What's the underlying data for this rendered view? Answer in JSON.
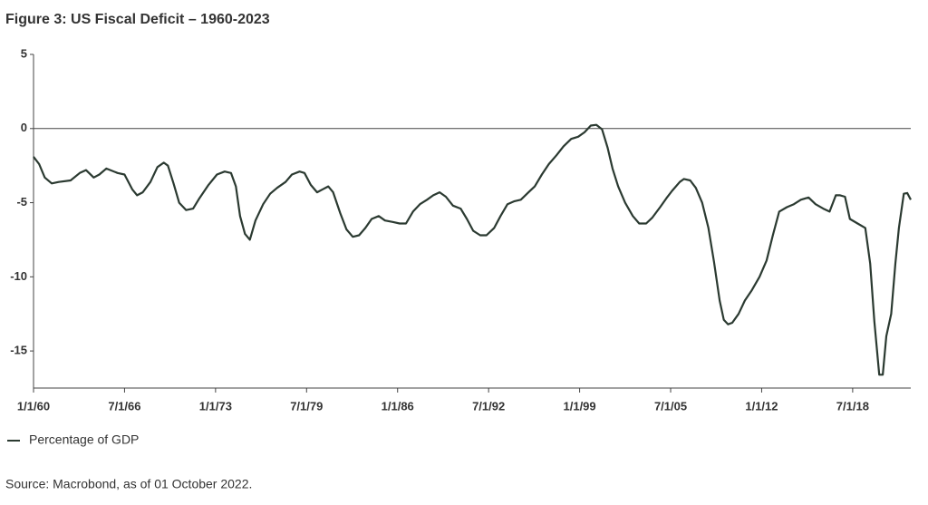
{
  "chart_data": {
    "type": "line",
    "title": "Figure 3: US Fiscal Deficit – 1960-2023",
    "source": "Source: Macrobond, as of 01 October 2022.",
    "x": [
      1960,
      1960.4,
      1960.8,
      1961.3,
      1961.8,
      1962.65,
      1963.3,
      1963.75,
      1964.3,
      1964.7,
      1965.2,
      1966,
      1966.5,
      1967.05,
      1967.4,
      1967.8,
      1968.35,
      1968.85,
      1969.3,
      1969.6,
      1970,
      1970.4,
      1970.9,
      1971.4,
      1971.85,
      1972.5,
      1973.1,
      1973.65,
      1974.1,
      1974.45,
      1974.75,
      1975.1,
      1975.45,
      1975.85,
      1976.4,
      1976.9,
      1977.4,
      1978,
      1978.45,
      1979,
      1979.35,
      1979.8,
      1980.25,
      1980.65,
      1981.05,
      1981.4,
      1981.9,
      1982.35,
      1982.8,
      1983.25,
      1983.7,
      1984.15,
      1984.65,
      1985.1,
      1985.65,
      1986.15,
      1986.6,
      1987.1,
      1987.6,
      1988.1,
      1988.55,
      1989,
      1989.45,
      1989.95,
      1990.5,
      1990.95,
      1991.4,
      1991.9,
      1992.35,
      1992.9,
      1993.35,
      1993.85,
      1994.35,
      1994.8,
      1995.35,
      1995.8,
      1996.3,
      1996.8,
      1997.35,
      1997.85,
      1998.4,
      1998.9,
      1999.35,
      1999.8,
      2000.2,
      2000.6,
      2001,
      2001.35,
      2001.75,
      2002.25,
      2002.8,
      2003.25,
      2003.75,
      2004.2,
      2004.75,
      2005.2,
      2005.6,
      2006.15,
      2006.45,
      2006.9,
      2007.3,
      2007.75,
      2008.2,
      2008.6,
      2009,
      2009.3,
      2009.6,
      2009.9,
      2010.35,
      2010.8,
      2011.3,
      2011.85,
      2012.35,
      2012.8,
      2013.25,
      2013.8,
      2014.3,
      2014.8,
      2015.35,
      2015.85,
      2016.4,
      2016.85,
      2017.3,
      2017.6,
      2017.95,
      2018.3,
      2018.85,
      2019.4,
      2019.75,
      2020.05,
      2020.4,
      2020.65,
      2020.9,
      2021.25,
      2021.55,
      2021.8,
      2022.15,
      2022.4,
      2022.65
    ],
    "series": [
      {
        "name": "Percentage of GDP",
        "color": "#2b3a31",
        "values": [
          -1.9,
          -2.4,
          -3.3,
          -3.7,
          -3.6,
          -3.5,
          -3.0,
          -2.8,
          -3.3,
          -3.1,
          -2.7,
          -3.0,
          -3.1,
          -4.1,
          -4.5,
          -4.3,
          -3.6,
          -2.6,
          -2.3,
          -2.5,
          -3.7,
          -5.0,
          -5.5,
          -5.4,
          -4.7,
          -3.8,
          -3.1,
          -2.9,
          -3.0,
          -3.9,
          -5.9,
          -7.1,
          -7.5,
          -6.2,
          -5.1,
          -4.4,
          -4.0,
          -3.6,
          -3.1,
          -2.9,
          -3.0,
          -3.8,
          -4.3,
          -4.1,
          -3.9,
          -4.3,
          -5.7,
          -6.8,
          -7.3,
          -7.2,
          -6.7,
          -6.1,
          -5.9,
          -6.2,
          -6.3,
          -6.4,
          -6.4,
          -5.6,
          -5.1,
          -4.8,
          -4.5,
          -4.3,
          -4.6,
          -5.2,
          -5.4,
          -6.1,
          -6.9,
          -7.2,
          -7.2,
          -6.7,
          -5.9,
          -5.1,
          -4.9,
          -4.8,
          -4.3,
          -3.9,
          -3.1,
          -2.4,
          -1.8,
          -1.2,
          -0.7,
          -0.55,
          -0.25,
          0.2,
          0.25,
          -0.05,
          -1.3,
          -2.7,
          -3.9,
          -5.0,
          -5.9,
          -6.4,
          -6.4,
          -6.0,
          -5.3,
          -4.7,
          -4.2,
          -3.6,
          -3.4,
          -3.5,
          -4.0,
          -5.0,
          -6.7,
          -9.0,
          -11.6,
          -12.9,
          -13.2,
          -13.1,
          -12.5,
          -11.6,
          -10.9,
          -10.0,
          -8.9,
          -7.2,
          -5.6,
          -5.3,
          -5.1,
          -4.8,
          -4.65,
          -5.1,
          -5.4,
          -5.6,
          -4.5,
          -4.5,
          -4.6,
          -6.1,
          -6.4,
          -6.7,
          -9.1,
          -13.0,
          -16.6,
          -16.6,
          -14.0,
          -12.5,
          -9.1,
          -6.7,
          -4.4,
          -4.35,
          -4.8
        ]
      }
    ],
    "xlim": [
      1960,
      2022.65
    ],
    "xticks": [
      {
        "value": 1960,
        "label": "1/1/60"
      },
      {
        "value": 1966.5,
        "label": "7/1/66"
      },
      {
        "value": 1973,
        "label": "1/1/73"
      },
      {
        "value": 1979.5,
        "label": "7/1/79"
      },
      {
        "value": 1986,
        "label": "1/1/86"
      },
      {
        "value": 1992.5,
        "label": "7/1/92"
      },
      {
        "value": 1999,
        "label": "1/1/99"
      },
      {
        "value": 2005.5,
        "label": "7/1/05"
      },
      {
        "value": 2012,
        "label": "1/1/12"
      },
      {
        "value": 2018.5,
        "label": "7/1/18"
      }
    ],
    "ylim": [
      -17.5,
      5
    ],
    "yticks": [
      5,
      0,
      -5,
      -10,
      -15
    ],
    "reference_line": 0,
    "legend": "bottom-left"
  }
}
